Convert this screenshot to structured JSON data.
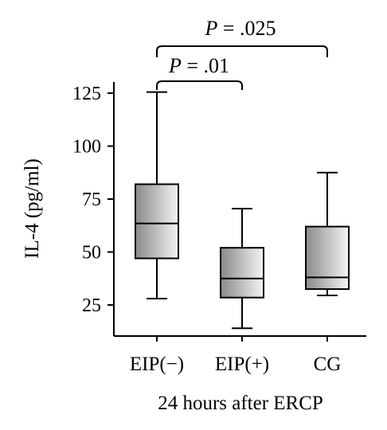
{
  "chart_data": {
    "type": "box",
    "categories": [
      "EIP(−)",
      "EIP(+)",
      "CG"
    ],
    "series": [
      {
        "category": "EIP(−)",
        "min": 28,
        "q1": 47,
        "median": 63.5,
        "q3": 82,
        "max": 125.5
      },
      {
        "category": "EIP(+)",
        "min": 14,
        "q1": 28.5,
        "median": 37.5,
        "q3": 52,
        "max": 70.5
      },
      {
        "category": "CG",
        "min": 29.5,
        "q1": 32.5,
        "median": 38,
        "q3": 62,
        "max": 87.5
      }
    ],
    "yticks": [
      25,
      50,
      75,
      100,
      125
    ],
    "ylim": [
      10,
      130
    ],
    "ylabel": "IL-4 (pg/ml)",
    "xlabel": "24 hours after ERCP",
    "comparisons": [
      {
        "from": 0,
        "to": 1,
        "p_symbol": "P",
        "p_value": "= .01"
      },
      {
        "from": 0,
        "to": 2,
        "p_symbol": "P",
        "p_value": "= .025"
      }
    ],
    "box_gradient": [
      "#8a8a8a",
      "#f4f4f4"
    ]
  }
}
